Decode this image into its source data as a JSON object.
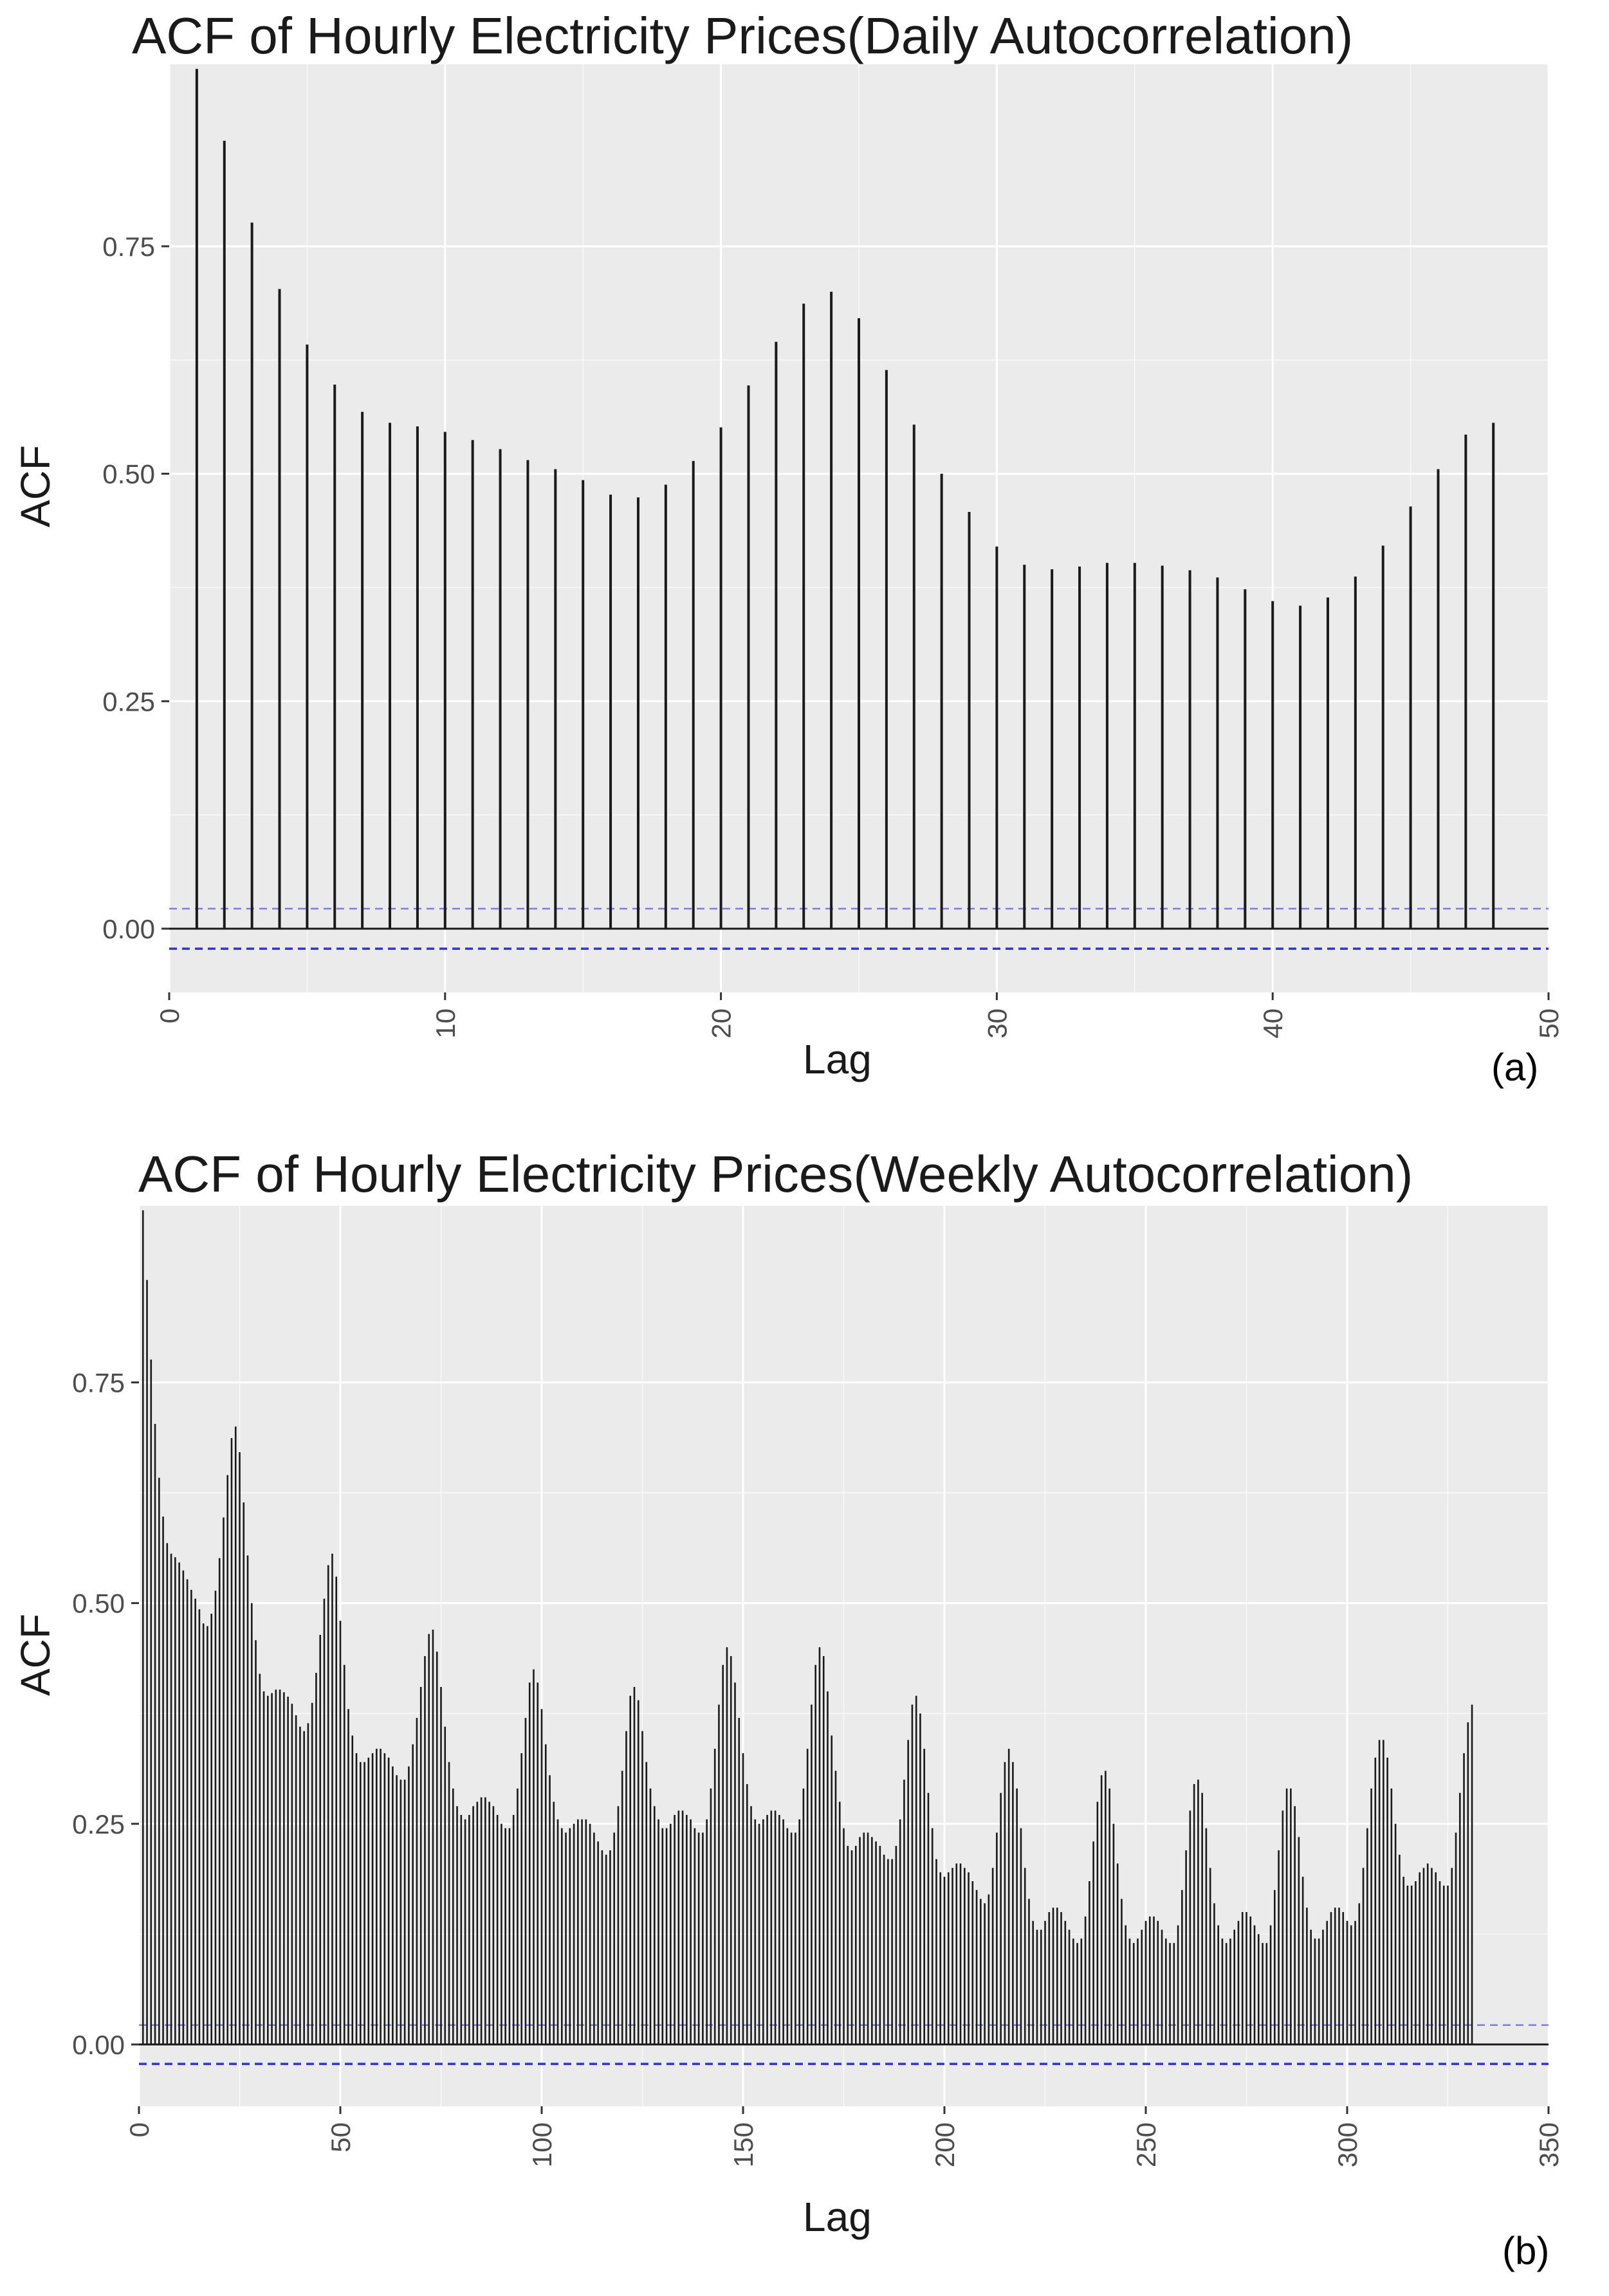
{
  "chart_data": [
    {
      "panel": "(a)",
      "type": "bar",
      "title": "ACF of Hourly Electricity Prices(Daily Autocorrelation)",
      "xlabel": "Lag",
      "ylabel": "ACF",
      "xlim": [
        0,
        50
      ],
      "ylim": [
        -0.07,
        0.95
      ],
      "xticks": [
        "0",
        "10",
        "20",
        "30",
        "40",
        "50"
      ],
      "xtick_values": [
        0,
        10,
        20,
        30,
        40,
        50
      ],
      "yticks": [
        "0.00",
        "0.25",
        "0.50",
        "0.75"
      ],
      "ytick_values": [
        0,
        0.25,
        0.5,
        0.75
      ],
      "confidence_limit": 0.022,
      "grid": true,
      "colors": {
        "bar": "#1a1a1a",
        "panel": "#ebebeb",
        "grid": "#ffffff",
        "ci": "#3333cc",
        "zero": "#1a1a1a"
      },
      "x": [
        1,
        2,
        3,
        4,
        5,
        6,
        7,
        8,
        9,
        10,
        11,
        12,
        13,
        14,
        15,
        16,
        17,
        18,
        19,
        20,
        21,
        22,
        23,
        24,
        25,
        26,
        27,
        28,
        29,
        30,
        31,
        32,
        33,
        34,
        35,
        36,
        37,
        38,
        39,
        40,
        41,
        42,
        43,
        44,
        45,
        46,
        47,
        48
      ],
      "values": [
        0.945,
        0.866,
        0.776,
        0.703,
        0.642,
        0.598,
        0.568,
        0.556,
        0.552,
        0.546,
        0.537,
        0.527,
        0.515,
        0.505,
        0.493,
        0.477,
        0.474,
        0.488,
        0.514,
        0.551,
        0.597,
        0.645,
        0.687,
        0.7,
        0.671,
        0.614,
        0.554,
        0.5,
        0.458,
        0.42,
        0.4,
        0.395,
        0.398,
        0.402,
        0.402,
        0.399,
        0.394,
        0.386,
        0.373,
        0.36,
        0.355,
        0.364,
        0.387,
        0.421,
        0.464,
        0.505,
        0.543,
        0.556
      ]
    },
    {
      "panel": "(b)",
      "type": "bar",
      "title": "ACF of Hourly Electricity Prices(Weekly Autocorrelation)",
      "xlabel": "Lag",
      "ylabel": "ACF",
      "xlim": [
        0,
        350
      ],
      "ylim": [
        -0.07,
        0.95
      ],
      "xticks": [
        "0",
        "50",
        "100",
        "150",
        "200",
        "250",
        "300",
        "350"
      ],
      "xtick_values": [
        0,
        50,
        100,
        150,
        200,
        250,
        300,
        350
      ],
      "yticks": [
        "0.00",
        "0.25",
        "0.50",
        "0.75"
      ],
      "ytick_values": [
        0,
        0.25,
        0.5,
        0.75
      ],
      "confidence_limit": 0.022,
      "grid": true,
      "colors": {
        "bar": "#1a1a1a",
        "panel": "#ebebeb",
        "grid": "#ffffff",
        "ci": "#3333cc",
        "zero": "#1a1a1a"
      },
      "x_start": 1,
      "x_step": 1,
      "values": [
        0.945,
        0.866,
        0.776,
        0.703,
        0.642,
        0.598,
        0.568,
        0.556,
        0.552,
        0.546,
        0.537,
        0.527,
        0.515,
        0.505,
        0.493,
        0.477,
        0.474,
        0.488,
        0.514,
        0.551,
        0.597,
        0.645,
        0.687,
        0.7,
        0.671,
        0.614,
        0.554,
        0.5,
        0.458,
        0.42,
        0.4,
        0.395,
        0.398,
        0.402,
        0.402,
        0.399,
        0.394,
        0.386,
        0.373,
        0.36,
        0.355,
        0.364,
        0.387,
        0.421,
        0.464,
        0.505,
        0.543,
        0.556,
        0.53,
        0.48,
        0.43,
        0.38,
        0.35,
        0.33,
        0.32,
        0.32,
        0.325,
        0.33,
        0.335,
        0.335,
        0.33,
        0.325,
        0.315,
        0.305,
        0.3,
        0.3,
        0.315,
        0.34,
        0.37,
        0.405,
        0.44,
        0.465,
        0.47,
        0.445,
        0.405,
        0.36,
        0.32,
        0.29,
        0.27,
        0.26,
        0.255,
        0.26,
        0.27,
        0.275,
        0.28,
        0.28,
        0.275,
        0.27,
        0.26,
        0.25,
        0.245,
        0.245,
        0.26,
        0.29,
        0.33,
        0.37,
        0.41,
        0.425,
        0.41,
        0.38,
        0.34,
        0.305,
        0.275,
        0.255,
        0.245,
        0.24,
        0.245,
        0.25,
        0.255,
        0.255,
        0.255,
        0.25,
        0.24,
        0.23,
        0.22,
        0.215,
        0.22,
        0.24,
        0.27,
        0.31,
        0.355,
        0.395,
        0.405,
        0.39,
        0.355,
        0.32,
        0.29,
        0.27,
        0.255,
        0.245,
        0.245,
        0.25,
        0.26,
        0.265,
        0.265,
        0.26,
        0.255,
        0.245,
        0.24,
        0.24,
        0.255,
        0.29,
        0.335,
        0.385,
        0.43,
        0.45,
        0.44,
        0.41,
        0.37,
        0.33,
        0.295,
        0.27,
        0.255,
        0.25,
        0.255,
        0.26,
        0.265,
        0.265,
        0.26,
        0.255,
        0.245,
        0.24,
        0.24,
        0.255,
        0.29,
        0.335,
        0.385,
        0.43,
        0.45,
        0.44,
        0.4,
        0.35,
        0.31,
        0.275,
        0.245,
        0.225,
        0.22,
        0.225,
        0.235,
        0.24,
        0.24,
        0.235,
        0.23,
        0.225,
        0.215,
        0.21,
        0.21,
        0.225,
        0.255,
        0.3,
        0.345,
        0.385,
        0.395,
        0.375,
        0.335,
        0.285,
        0.245,
        0.21,
        0.195,
        0.19,
        0.195,
        0.2,
        0.205,
        0.205,
        0.2,
        0.195,
        0.185,
        0.175,
        0.165,
        0.16,
        0.17,
        0.2,
        0.24,
        0.285,
        0.32,
        0.335,
        0.32,
        0.29,
        0.245,
        0.2,
        0.165,
        0.14,
        0.13,
        0.13,
        0.14,
        0.15,
        0.155,
        0.155,
        0.15,
        0.14,
        0.13,
        0.12,
        0.115,
        0.12,
        0.145,
        0.185,
        0.23,
        0.275,
        0.305,
        0.31,
        0.29,
        0.25,
        0.205,
        0.165,
        0.135,
        0.12,
        0.115,
        0.12,
        0.13,
        0.14,
        0.145,
        0.145,
        0.14,
        0.13,
        0.12,
        0.115,
        0.115,
        0.135,
        0.175,
        0.22,
        0.265,
        0.295,
        0.3,
        0.285,
        0.245,
        0.2,
        0.16,
        0.135,
        0.12,
        0.115,
        0.12,
        0.13,
        0.14,
        0.15,
        0.15,
        0.145,
        0.135,
        0.125,
        0.115,
        0.115,
        0.135,
        0.175,
        0.22,
        0.265,
        0.29,
        0.29,
        0.27,
        0.235,
        0.19,
        0.155,
        0.13,
        0.12,
        0.12,
        0.13,
        0.14,
        0.15,
        0.155,
        0.155,
        0.15,
        0.14,
        0.135,
        0.14,
        0.16,
        0.2,
        0.245,
        0.29,
        0.325,
        0.345,
        0.345,
        0.325,
        0.29,
        0.25,
        0.215,
        0.19,
        0.18,
        0.18,
        0.185,
        0.195,
        0.2,
        0.205,
        0.2,
        0.195,
        0.185,
        0.18,
        0.18,
        0.2,
        0.24,
        0.285,
        0.33,
        0.365,
        0.385
      ]
    }
  ],
  "panel_labels": {
    "a": "(a)",
    "b": "(b)"
  }
}
